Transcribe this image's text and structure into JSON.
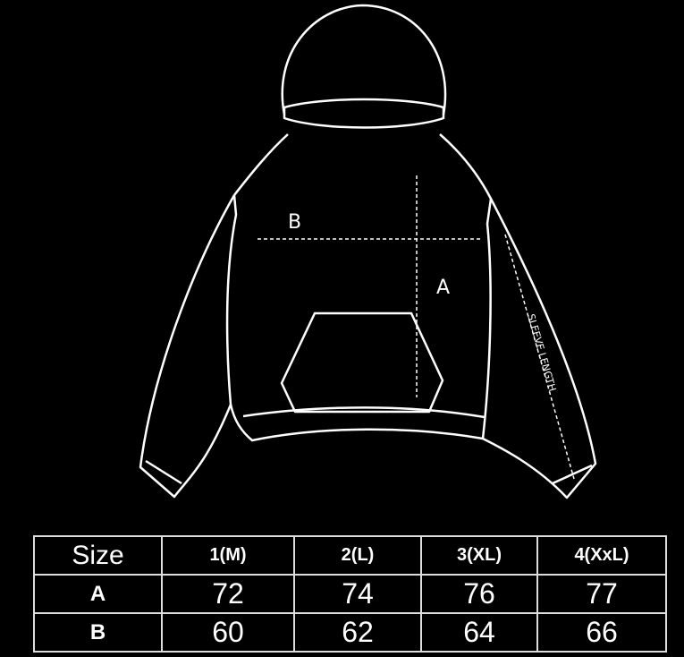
{
  "diagram": {
    "labels": {
      "a": "A",
      "b": "B",
      "sleeve": "SLEEVE LENGTH"
    }
  },
  "table": {
    "header": [
      "Size",
      "1(M)",
      "2(L)",
      "3(XL)",
      "4(XxL)"
    ],
    "rows": [
      {
        "label": "A",
        "values": [
          "72",
          "74",
          "76",
          "77"
        ]
      },
      {
        "label": "B",
        "values": [
          "60",
          "62",
          "64",
          "66"
        ]
      }
    ]
  },
  "colors": {
    "background": "#000000",
    "lines": "#ffffff"
  }
}
